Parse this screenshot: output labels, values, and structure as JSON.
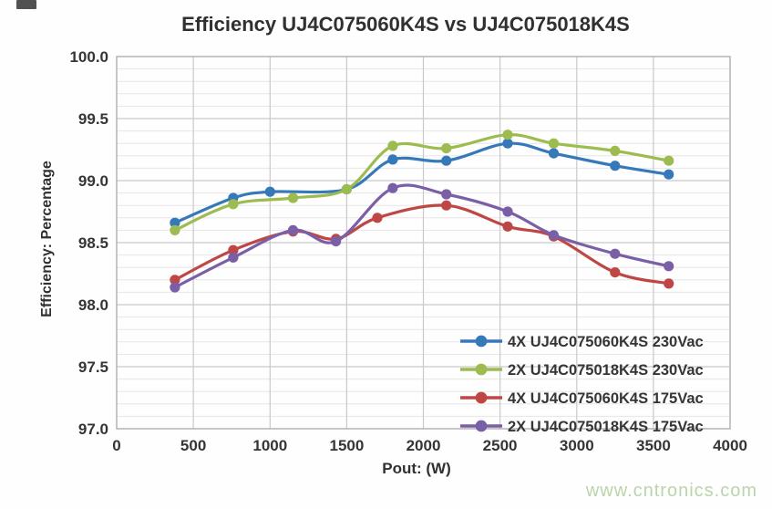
{
  "page": {
    "watermark": "www.cntronics.com",
    "watermark_color": "#bdd3ac",
    "background": "#ffffff",
    "text_color": "#303030"
  },
  "chart_data": {
    "type": "line",
    "title": "Efficiency UJ4C075060K4S vs UJ4C075018K4S",
    "xlabel": "Pout: (W)",
    "ylabel": "Efficiency: Percentage",
    "xlim": [
      0,
      4000
    ],
    "ylim": [
      97.0,
      100.0
    ],
    "x_ticks": [
      0,
      500,
      1000,
      1500,
      2000,
      2500,
      3000,
      3500,
      4000
    ],
    "y_ticks": [
      97.0,
      97.5,
      98.0,
      98.5,
      99.0,
      99.5,
      100.0
    ],
    "y_minor_step": 0.1,
    "grid": true,
    "grid_minor_color": "#e6e6e6",
    "grid_major_color": "#c9c9c9",
    "border_color": "#b3b3b3",
    "legend_position": "inside-bottom-right",
    "series": [
      {
        "name": "4X UJ4C075060K4S 230Vac",
        "color": "#3579b8",
        "points": [
          [
            380,
            98.66
          ],
          [
            760,
            98.86
          ],
          [
            1000,
            98.91
          ],
          [
            1500,
            98.93
          ],
          [
            1800,
            99.17
          ],
          [
            2150,
            99.16
          ],
          [
            2550,
            99.3
          ],
          [
            2850,
            99.22
          ],
          [
            3250,
            99.12
          ],
          [
            3600,
            99.05
          ]
        ]
      },
      {
        "name": "2X UJ4C075018K4S 230Vac",
        "color": "#9dbc4f",
        "points": [
          [
            380,
            98.6
          ],
          [
            760,
            98.81
          ],
          [
            1150,
            98.86
          ],
          [
            1500,
            98.93
          ],
          [
            1800,
            99.28
          ],
          [
            2150,
            99.26
          ],
          [
            2550,
            99.37
          ],
          [
            2850,
            99.3
          ],
          [
            3250,
            99.24
          ],
          [
            3600,
            99.16
          ]
        ]
      },
      {
        "name": "4X UJ4C075060K4S 175Vac",
        "color": "#be4745",
        "points": [
          [
            380,
            98.2
          ],
          [
            760,
            98.44
          ],
          [
            1150,
            98.59
          ],
          [
            1430,
            98.53
          ],
          [
            1700,
            98.7
          ],
          [
            2150,
            98.8
          ],
          [
            2550,
            98.63
          ],
          [
            2850,
            98.55
          ],
          [
            3250,
            98.26
          ],
          [
            3600,
            98.17
          ]
        ]
      },
      {
        "name": "2X UJ4C075018K4S 175Vac",
        "color": "#7a5fa6",
        "points": [
          [
            380,
            98.14
          ],
          [
            760,
            98.38
          ],
          [
            1150,
            98.6
          ],
          [
            1430,
            98.51
          ],
          [
            1800,
            98.94
          ],
          [
            2150,
            98.89
          ],
          [
            2550,
            98.75
          ],
          [
            2850,
            98.56
          ],
          [
            3250,
            98.41
          ],
          [
            3600,
            98.31
          ]
        ]
      }
    ]
  }
}
